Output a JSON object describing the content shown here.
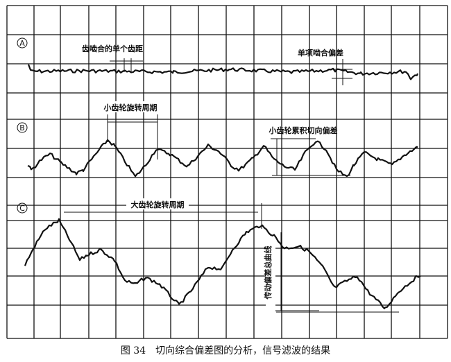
{
  "panels": [
    {
      "letter": "A",
      "labels": [
        "齿啮合的单个齿距",
        "单项啮合偏差"
      ]
    },
    {
      "letter": "B",
      "labels": [
        "小齿轮旋转周期",
        "小齿轮累积切向偏差"
      ]
    },
    {
      "letter": "C",
      "labels": [
        "大齿轮旋转周期",
        "传动偏差总曲线"
      ]
    }
  ],
  "caption": "图 34　切向综合偏差图的分析，信号滤波的结果",
  "colors": {
    "ink": "#111111",
    "paper": "#ffffff"
  }
}
